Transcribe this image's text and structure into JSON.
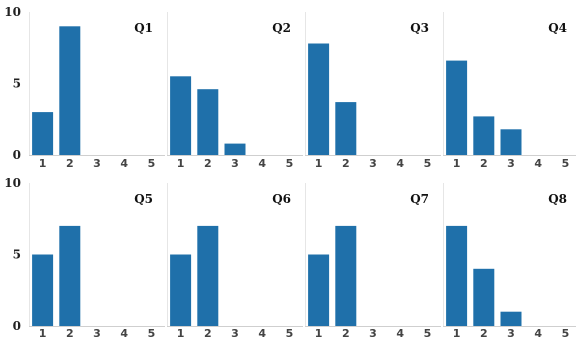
{
  "chart_data": [
    {
      "type": "bar",
      "title": "Q1",
      "categories": [
        "1",
        "2",
        "3",
        "4",
        "5"
      ],
      "values": [
        3,
        9,
        0,
        0,
        0
      ],
      "ylim": [
        0,
        10
      ],
      "yticks": [
        "0",
        "5",
        "10"
      ],
      "grid": false
    },
    {
      "type": "bar",
      "title": "Q2",
      "categories": [
        "1",
        "2",
        "3",
        "4",
        "5"
      ],
      "values": [
        5.5,
        4.6,
        0.8,
        0,
        0
      ],
      "ylim": [
        0,
        10
      ],
      "yticks": [
        "0",
        "5",
        "10"
      ],
      "grid": false
    },
    {
      "type": "bar",
      "title": "Q3",
      "categories": [
        "1",
        "2",
        "3",
        "4",
        "5"
      ],
      "values": [
        7.8,
        3.7,
        0,
        0,
        0
      ],
      "ylim": [
        0,
        10
      ],
      "yticks": [
        "0",
        "5",
        "10"
      ],
      "grid": false
    },
    {
      "type": "bar",
      "title": "Q4",
      "categories": [
        "1",
        "2",
        "3",
        "4",
        "5"
      ],
      "values": [
        6.6,
        2.7,
        1.8,
        0,
        0
      ],
      "ylim": [
        0,
        10
      ],
      "yticks": [
        "0",
        "5",
        "10"
      ],
      "grid": false
    },
    {
      "type": "bar",
      "title": "Q5",
      "categories": [
        "1",
        "2",
        "3",
        "4",
        "5"
      ],
      "values": [
        5,
        7,
        0,
        0,
        0
      ],
      "ylim": [
        0,
        10
      ],
      "yticks": [
        "0",
        "5",
        "10"
      ],
      "grid": false
    },
    {
      "type": "bar",
      "title": "Q6",
      "categories": [
        "1",
        "2",
        "3",
        "4",
        "5"
      ],
      "values": [
        5,
        7,
        0,
        0,
        0
      ],
      "ylim": [
        0,
        10
      ],
      "yticks": [
        "0",
        "5",
        "10"
      ],
      "grid": false
    },
    {
      "type": "bar",
      "title": "Q7",
      "categories": [
        "1",
        "2",
        "3",
        "4",
        "5"
      ],
      "values": [
        5,
        7,
        0,
        0,
        0
      ],
      "ylim": [
        0,
        10
      ],
      "yticks": [
        "0",
        "5",
        "10"
      ],
      "grid": false
    },
    {
      "type": "bar",
      "title": "Q8",
      "categories": [
        "1",
        "2",
        "3",
        "4",
        "5"
      ],
      "values": [
        7,
        4,
        1,
        0,
        0
      ],
      "ylim": [
        0,
        10
      ],
      "yticks": [
        "0",
        "5",
        "10"
      ],
      "grid": false
    }
  ],
  "colors": {
    "bar": "#1f70aa"
  }
}
